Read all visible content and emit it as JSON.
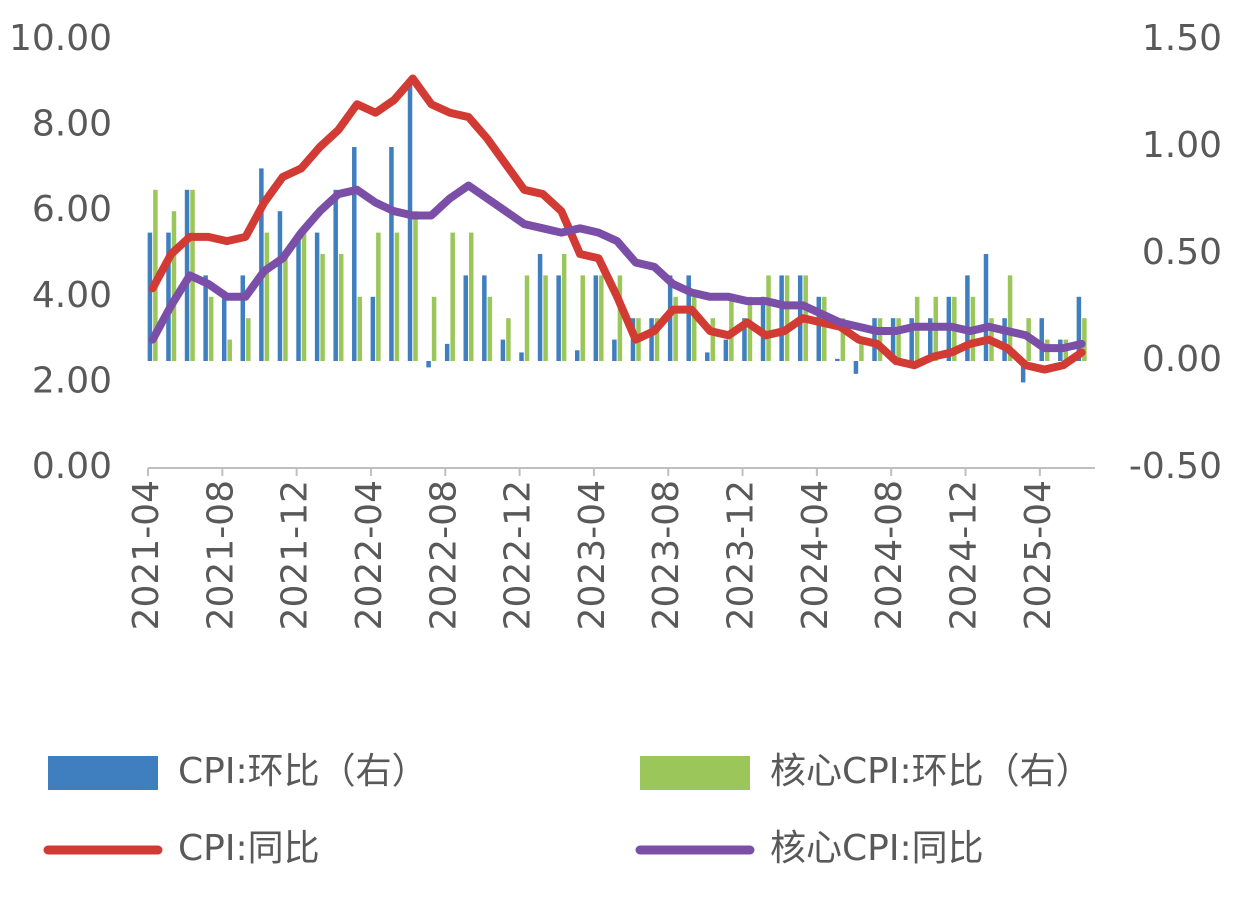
{
  "chart_data": {
    "type": "bar-line",
    "categories": [
      "2021-04",
      null,
      null,
      null,
      "2021-08",
      null,
      null,
      null,
      "2021-12",
      null,
      null,
      null,
      "2022-04",
      null,
      null,
      null,
      "2022-08",
      null,
      null,
      null,
      "2022-12",
      null,
      null,
      null,
      "2023-04",
      null,
      null,
      null,
      "2023-08",
      null,
      null,
      null,
      "2023-12",
      null,
      null,
      null,
      "2024-04",
      null,
      null,
      null,
      "2024-08",
      null,
      null,
      null,
      "2024-12",
      null,
      null,
      null,
      "2025-04",
      null,
      null
    ],
    "series": [
      {
        "name": "CPI:环比（右）",
        "color": "#3f7fbf",
        "kind": "bar",
        "axis": "y2",
        "values": [
          0.6,
          0.6,
          0.8,
          0.4,
          0.3,
          0.4,
          0.9,
          0.7,
          0.6,
          0.6,
          0.8,
          1.0,
          0.3,
          1.0,
          1.3,
          -0.03,
          0.08,
          0.4,
          0.4,
          0.1,
          0.04,
          0.5,
          0.4,
          0.05,
          0.4,
          0.1,
          0.2,
          0.2,
          0.4,
          0.4,
          0.04,
          0.1,
          0.2,
          0.3,
          0.4,
          0.4,
          0.3,
          0.01,
          -0.06,
          0.2,
          0.2,
          0.2,
          0.2,
          0.3,
          0.4,
          0.5,
          0.2,
          -0.1,
          0.2,
          0.1,
          0.3
        ]
      },
      {
        "name": "核心CPI:环比（右）",
        "color": "#9bc75a",
        "kind": "bar",
        "axis": "y2",
        "values": [
          0.8,
          0.7,
          0.8,
          0.3,
          0.1,
          0.2,
          0.6,
          0.5,
          0.6,
          0.5,
          0.5,
          0.3,
          0.6,
          0.6,
          0.7,
          0.3,
          0.6,
          0.6,
          0.3,
          0.2,
          0.4,
          0.4,
          0.5,
          0.4,
          0.4,
          0.4,
          0.2,
          0.2,
          0.3,
          0.3,
          0.2,
          0.3,
          0.3,
          0.4,
          0.4,
          0.4,
          0.3,
          0.2,
          0.1,
          0.2,
          0.2,
          0.3,
          0.3,
          0.3,
          0.3,
          0.2,
          0.4,
          0.2,
          0.1,
          0.1,
          0.2
        ]
      },
      {
        "name": "CPI:同比",
        "color": "#d23b34",
        "kind": "line",
        "values": [
          4.2,
          5.0,
          5.4,
          5.4,
          5.3,
          5.4,
          6.2,
          6.8,
          7.0,
          7.5,
          7.9,
          8.5,
          8.3,
          8.6,
          9.1,
          8.5,
          8.3,
          8.2,
          7.7,
          7.1,
          6.5,
          6.4,
          6.0,
          5.0,
          4.9,
          4.0,
          3.0,
          3.2,
          3.7,
          3.7,
          3.2,
          3.1,
          3.4,
          3.1,
          3.2,
          3.5,
          3.4,
          3.3,
          3.0,
          2.9,
          2.5,
          2.4,
          2.6,
          2.7,
          2.9,
          3.0,
          2.8,
          2.4,
          2.3,
          2.4,
          2.7
        ]
      },
      {
        "name": "核心CPI:同比",
        "color": "#7b4fa8",
        "kind": "line",
        "values": [
          3.0,
          3.8,
          4.5,
          4.3,
          4.0,
          4.0,
          4.6,
          4.9,
          5.5,
          6.0,
          6.4,
          6.5,
          6.2,
          6.0,
          5.9,
          5.9,
          6.3,
          6.6,
          6.3,
          6.0,
          5.7,
          5.6,
          5.5,
          5.6,
          5.5,
          5.3,
          4.8,
          4.7,
          4.3,
          4.1,
          4.0,
          4.0,
          3.9,
          3.9,
          3.8,
          3.8,
          3.6,
          3.4,
          3.3,
          3.2,
          3.2,
          3.3,
          3.3,
          3.3,
          3.2,
          3.3,
          3.2,
          3.1,
          2.8,
          2.8,
          2.9
        ]
      }
    ],
    "ylim": [
      0,
      10
    ],
    "yticks": [
      {
        "value": 0,
        "label": "0.00"
      },
      {
        "value": 2,
        "label": "2.00"
      },
      {
        "value": 4,
        "label": "4.00"
      },
      {
        "value": 6,
        "label": "6.00"
      },
      {
        "value": 8,
        "label": "8.00"
      },
      {
        "value": 10,
        "label": "10.00"
      }
    ],
    "y2lim": [
      -0.5,
      1.5
    ],
    "y2ticks": [
      {
        "value": -0.5,
        "label": "-0.50"
      },
      {
        "value": 0,
        "label": "0.00"
      },
      {
        "value": 0.5,
        "label": "0.50"
      },
      {
        "value": 1,
        "label": "1.00"
      },
      {
        "value": 1.5,
        "label": "1.50"
      }
    ]
  }
}
